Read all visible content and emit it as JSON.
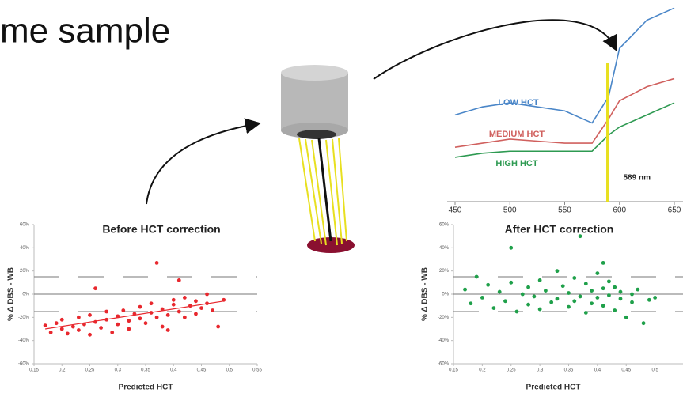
{
  "slide_title": "me sample",
  "chart_data": [
    {
      "type": "line",
      "x": [
        450,
        475,
        500,
        525,
        550,
        575,
        590,
        600,
        625,
        650
      ],
      "xlim": [
        450,
        650
      ],
      "xticks": [
        450,
        500,
        550,
        600,
        650
      ],
      "ylim": [
        0,
        1
      ],
      "series": [
        {
          "name": "LOW HCT",
          "color": "#4a86c8",
          "values": [
            0.43,
            0.47,
            0.49,
            0.47,
            0.45,
            0.39,
            0.52,
            0.76,
            0.9,
            0.96
          ]
        },
        {
          "name": "MEDIUM HCT",
          "color": "#d0605e",
          "values": [
            0.27,
            0.29,
            0.31,
            0.3,
            0.29,
            0.29,
            0.41,
            0.5,
            0.57,
            0.61
          ]
        },
        {
          "name": "HIGH HCT",
          "color": "#2e9a52",
          "values": [
            0.22,
            0.24,
            0.25,
            0.25,
            0.25,
            0.25,
            0.33,
            0.37,
            0.43,
            0.49
          ]
        }
      ],
      "annotation": {
        "x": 589,
        "label": "589 nm"
      }
    },
    {
      "type": "scatter",
      "title": "Before HCT correction",
      "x_label": "Predicted HCT",
      "y_label": "% Δ DBS - WB",
      "color": "#e8282e",
      "xlim": [
        0.15,
        0.55
      ],
      "xticks": [
        0.15,
        0.2,
        0.25,
        0.3,
        0.35,
        0.4,
        0.45,
        0.5,
        0.55
      ],
      "ylim": [
        -60,
        60
      ],
      "yticks": [
        {
          "value": -60,
          "label": "-60%"
        },
        {
          "value": -40,
          "label": "-40%"
        },
        {
          "value": -20,
          "label": "-20%"
        },
        {
          "value": 0,
          "label": "0%"
        },
        {
          "value": 20,
          "label": "20%"
        },
        {
          "value": 40,
          "label": "40%"
        },
        {
          "value": 60,
          "label": "60%"
        }
      ],
      "reference_lines": [
        15,
        0,
        -15
      ],
      "trendline": {
        "x": [
          0.17,
          0.49
        ],
        "values": [
          -30,
          -6
        ]
      },
      "x": [
        0.17,
        0.18,
        0.19,
        0.2,
        0.2,
        0.21,
        0.22,
        0.23,
        0.23,
        0.24,
        0.25,
        0.25,
        0.26,
        0.26,
        0.27,
        0.28,
        0.28,
        0.29,
        0.3,
        0.3,
        0.31,
        0.32,
        0.32,
        0.33,
        0.34,
        0.34,
        0.35,
        0.36,
        0.36,
        0.37,
        0.37,
        0.38,
        0.38,
        0.39,
        0.4,
        0.4,
        0.41,
        0.41,
        0.42,
        0.42,
        0.43,
        0.44,
        0.44,
        0.45,
        0.46,
        0.46,
        0.47,
        0.48,
        0.49,
        0.39
      ],
      "values": [
        -27,
        -33,
        -25,
        -30,
        -22,
        -34,
        -28,
        -20,
        -31,
        -26,
        -35,
        -18,
        5,
        -24,
        -29,
        -15,
        -22,
        -33,
        -19,
        -26,
        -14,
        -23,
        -30,
        -17,
        -21,
        -11,
        -25,
        -16,
        -8,
        27,
        -20,
        -13,
        -28,
        -18,
        -9,
        -5,
        -15,
        12,
        -3,
        -20,
        -10,
        -6,
        -17,
        -12,
        0,
        -8,
        -14,
        -28,
        -5,
        -31
      ]
    },
    {
      "type": "scatter",
      "title": "After HCT correction",
      "x_label": "Predicted HCT",
      "y_label": "% Δ DBS - WB",
      "color": "#1fa04a",
      "xlim": [
        0.15,
        0.55
      ],
      "xticks": [
        0.15,
        0.2,
        0.25,
        0.3,
        0.35,
        0.4,
        0.45,
        0.5
      ],
      "ylim": [
        -60,
        60
      ],
      "yticks": [
        {
          "value": -60,
          "label": "-60%"
        },
        {
          "value": -40,
          "label": "-40%"
        },
        {
          "value": -20,
          "label": "-20%"
        },
        {
          "value": 0,
          "label": "0%"
        },
        {
          "value": 20,
          "label": "20%"
        },
        {
          "value": 40,
          "label": "40%"
        },
        {
          "value": 60,
          "label": "60%"
        }
      ],
      "reference_lines": [
        15,
        0,
        -15
      ],
      "x": [
        0.17,
        0.18,
        0.19,
        0.2,
        0.21,
        0.22,
        0.23,
        0.24,
        0.25,
        0.25,
        0.26,
        0.27,
        0.28,
        0.28,
        0.29,
        0.3,
        0.3,
        0.31,
        0.32,
        0.33,
        0.33,
        0.34,
        0.35,
        0.35,
        0.36,
        0.36,
        0.37,
        0.37,
        0.38,
        0.38,
        0.39,
        0.39,
        0.4,
        0.4,
        0.41,
        0.41,
        0.41,
        0.42,
        0.42,
        0.43,
        0.43,
        0.44,
        0.44,
        0.45,
        0.46,
        0.46,
        0.47,
        0.48,
        0.49,
        0.5
      ],
      "values": [
        4,
        -8,
        15,
        -3,
        8,
        -12,
        2,
        -6,
        40,
        10,
        -15,
        0,
        6,
        -9,
        -2,
        12,
        -13,
        3,
        -7,
        20,
        -4,
        7,
        -11,
        1,
        14,
        -6,
        50,
        -2,
        9,
        -16,
        3,
        -8,
        18,
        -3,
        27,
        5,
        -10,
        11,
        -1,
        -14,
        6,
        -4,
        2,
        -20,
        -7,
        0,
        4,
        -25,
        -5,
        -3
      ]
    }
  ]
}
